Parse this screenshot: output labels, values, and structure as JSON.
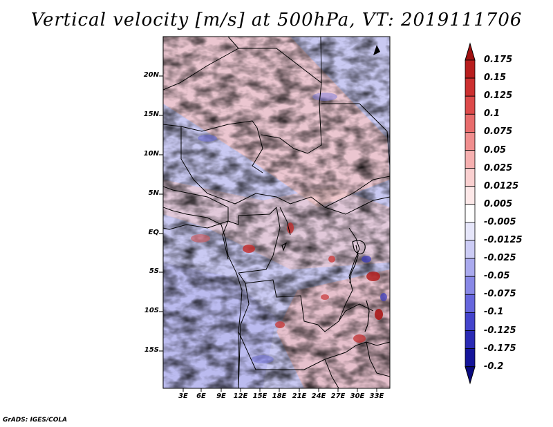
{
  "title": "Vertical velocity [m/s] at 500hPa, VT: 2019111706",
  "footer": "GrADS: IGES/COLA",
  "map": {
    "lat_labels": [
      "20N",
      "15N",
      "10N",
      "5N",
      "EQ",
      "5S",
      "10S",
      "15S"
    ],
    "lon_labels": [
      "3E",
      "6E",
      "9E",
      "12E",
      "15E",
      "18E",
      "21E",
      "24E",
      "27E",
      "30E",
      "33E"
    ],
    "field": "vertical velocity",
    "units": "m/s",
    "level": "500hPa"
  },
  "colorbar": {
    "levels": [
      "0.175",
      "0.15",
      "0.125",
      "0.1",
      "0.075",
      "0.05",
      "0.025",
      "0.0125",
      "0.005",
      "-0.005",
      "-0.0125",
      "-0.025",
      "-0.05",
      "-0.075",
      "-0.1",
      "-0.125",
      "-0.175",
      "-0.2"
    ],
    "colors": [
      "#a01010",
      "#b81e1e",
      "#cc3030",
      "#dd4a4a",
      "#e86c6c",
      "#f08e8e",
      "#f6b0b0",
      "#fad0d0",
      "#fde8e8",
      "#ffffff",
      "#e6e6fa",
      "#ccccf5",
      "#aaaaee",
      "#8888e6",
      "#6666dd",
      "#4444cc",
      "#2a2ab4",
      "#15159a",
      "#0a0a80"
    ]
  }
}
